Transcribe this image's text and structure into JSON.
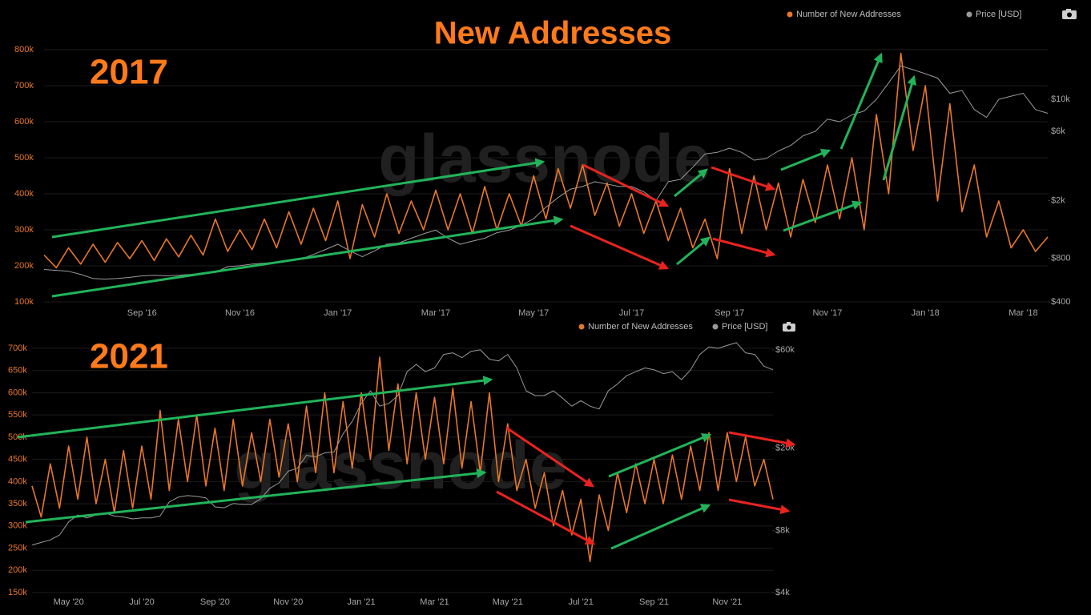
{
  "title": "New Addresses",
  "chart_data": [
    {
      "type": "line",
      "annotations": [
        "2017",
        "glassnode"
      ],
      "categories": [
        null,
        null,
        null,
        null,
        null,
        null,
        null,
        null,
        "Sep '16",
        null,
        null,
        null,
        null,
        null,
        null,
        null,
        "Nov '16",
        null,
        null,
        null,
        null,
        null,
        null,
        null,
        "Jan '17",
        null,
        null,
        null,
        null,
        null,
        null,
        null,
        "Mar '17",
        null,
        null,
        null,
        null,
        null,
        null,
        null,
        "May '17",
        null,
        null,
        null,
        null,
        null,
        null,
        null,
        "Jul '17",
        null,
        null,
        null,
        null,
        null,
        null,
        null,
        "Sep '17",
        null,
        null,
        null,
        null,
        null,
        null,
        null,
        "Nov '17",
        null,
        null,
        null,
        null,
        null,
        null,
        null,
        "Jan '18",
        null,
        null,
        null,
        null,
        null,
        null,
        null,
        "Mar '18",
        null,
        null
      ],
      "series": [
        {
          "name": "Number of New Addresses",
          "color": "#e8772a",
          "axis": "y",
          "values": [
            230000,
            195000,
            250000,
            205000,
            260000,
            210000,
            265000,
            220000,
            270000,
            215000,
            275000,
            225000,
            285000,
            230000,
            330000,
            240000,
            300000,
            245000,
            330000,
            250000,
            350000,
            260000,
            360000,
            270000,
            380000,
            220000,
            370000,
            280000,
            400000,
            290000,
            380000,
            300000,
            410000,
            300000,
            400000,
            290000,
            420000,
            300000,
            400000,
            310000,
            450000,
            330000,
            470000,
            360000,
            480000,
            340000,
            430000,
            310000,
            400000,
            290000,
            380000,
            270000,
            360000,
            250000,
            330000,
            220000,
            470000,
            290000,
            450000,
            300000,
            430000,
            280000,
            440000,
            320000,
            480000,
            330000,
            500000,
            300000,
            620000,
            400000,
            790000,
            520000,
            700000,
            380000,
            650000,
            350000,
            480000,
            280000,
            380000,
            250000,
            300000,
            240000,
            280000
          ]
        },
        {
          "name": "Price [USD]",
          "color": "#9a9a9a",
          "axis": "y2",
          "values": [
            670,
            660,
            650,
            620,
            580,
            575,
            580,
            590,
            605,
            610,
            605,
            610,
            620,
            630,
            640,
            700,
            710,
            730,
            740,
            750,
            770,
            790,
            850,
            920,
            1000,
            900,
            820,
            900,
            1000,
            1020,
            1100,
            1180,
            1250,
            1100,
            1000,
            1050,
            1100,
            1200,
            1250,
            1350,
            1500,
            1800,
            2100,
            2400,
            2500,
            2700,
            2600,
            2500,
            2500,
            2300,
            2000,
            2700,
            2800,
            3400,
            4200,
            4300,
            4600,
            4300,
            3800,
            3900,
            4400,
            4800,
            5600,
            6000,
            7300,
            7000,
            7800,
            8300,
            10000,
            13000,
            17000,
            16000,
            15000,
            14000,
            11000,
            11500,
            8500,
            7500,
            10000,
            10500,
            11000,
            8500,
            8000
          ]
        }
      ],
      "ylim": [
        100000,
        800000
      ],
      "yticks": [
        {
          "value": 100000,
          "label": "100k"
        },
        {
          "value": 200000,
          "label": "200k"
        },
        {
          "value": 300000,
          "label": "300k"
        },
        {
          "value": 400000,
          "label": "400k"
        },
        {
          "value": 500000,
          "label": "500k"
        },
        {
          "value": 600000,
          "label": "600k"
        },
        {
          "value": 700000,
          "label": "700k"
        },
        {
          "value": 800000,
          "label": "800k"
        }
      ],
      "y2lim": [
        400,
        22000
      ],
      "y2log": true,
      "y2ticks": [
        {
          "value": 400,
          "label": "$400"
        },
        {
          "value": 800,
          "label": "$800"
        },
        {
          "value": 2000,
          "label": "$2k"
        },
        {
          "value": 6000,
          "label": "$6k"
        },
        {
          "value": 10000,
          "label": "$10k"
        }
      ],
      "grid": true
    },
    {
      "type": "line",
      "annotations": [
        "2021",
        "glassnode"
      ],
      "categories": [
        null,
        null,
        null,
        null,
        "May '20",
        null,
        null,
        null,
        null,
        null,
        null,
        null,
        "Jul '20",
        null,
        null,
        null,
        null,
        null,
        null,
        null,
        "Sep '20",
        null,
        null,
        null,
        null,
        null,
        null,
        null,
        "Nov '20",
        null,
        null,
        null,
        null,
        null,
        null,
        null,
        "Jan '21",
        null,
        null,
        null,
        null,
        null,
        null,
        null,
        "Mar '21",
        null,
        null,
        null,
        null,
        null,
        null,
        null,
        "May '21",
        null,
        null,
        null,
        null,
        null,
        null,
        null,
        "Jul '21",
        null,
        null,
        null,
        null,
        null,
        null,
        null,
        "Sep '21",
        null,
        null,
        null,
        null,
        null,
        null,
        null,
        "Nov '21",
        null,
        null,
        null,
        null,
        null
      ],
      "series": [
        {
          "name": "Number of New Addresses",
          "color": "#e8772a",
          "axis": "y",
          "values": [
            390000,
            320000,
            440000,
            340000,
            480000,
            360000,
            500000,
            350000,
            450000,
            330000,
            470000,
            340000,
            480000,
            360000,
            560000,
            380000,
            540000,
            400000,
            550000,
            390000,
            520000,
            380000,
            540000,
            390000,
            510000,
            400000,
            540000,
            410000,
            530000,
            400000,
            570000,
            420000,
            600000,
            420000,
            580000,
            430000,
            600000,
            450000,
            680000,
            470000,
            620000,
            440000,
            600000,
            450000,
            590000,
            440000,
            610000,
            430000,
            580000,
            420000,
            600000,
            400000,
            530000,
            380000,
            450000,
            340000,
            420000,
            300000,
            380000,
            280000,
            360000,
            220000,
            370000,
            290000,
            420000,
            330000,
            440000,
            350000,
            450000,
            350000,
            460000,
            360000,
            480000,
            380000,
            510000,
            380000,
            510000,
            400000,
            500000,
            390000,
            450000,
            360000
          ]
        },
        {
          "name": "Price [USD]",
          "color": "#9a9a9a",
          "axis": "y2",
          "values": [
            6800,
            7000,
            7200,
            7600,
            8800,
            9500,
            9200,
            9500,
            9700,
            9400,
            9300,
            9100,
            9200,
            9200,
            9400,
            11000,
            11600,
            11800,
            11700,
            11500,
            10400,
            10300,
            10800,
            10700,
            10700,
            11400,
            12800,
            13600,
            15500,
            16000,
            18500,
            18200,
            19000,
            19200,
            23500,
            27000,
            33000,
            38000,
            32000,
            33000,
            36000,
            47000,
            51000,
            47000,
            49000,
            57000,
            58000,
            55000,
            59000,
            60000,
            54000,
            53000,
            57000,
            49000,
            38000,
            36000,
            36000,
            38000,
            35000,
            32000,
            34000,
            32000,
            31000,
            38000,
            41000,
            45000,
            47000,
            49000,
            48000,
            46000,
            47000,
            43000,
            48000,
            57000,
            62000,
            61000,
            63000,
            65000,
            58000,
            57000,
            50000,
            48000
          ]
        }
      ],
      "ylim": [
        150000,
        700000
      ],
      "yticks": [
        {
          "value": 150000,
          "label": "150k"
        },
        {
          "value": 200000,
          "label": "200k"
        },
        {
          "value": 250000,
          "label": "250k"
        },
        {
          "value": 300000,
          "label": "300k"
        },
        {
          "value": 350000,
          "label": "350k"
        },
        {
          "value": 400000,
          "label": "400k"
        },
        {
          "value": 450000,
          "label": "450k"
        },
        {
          "value": 500000,
          "label": "500k"
        },
        {
          "value": 550000,
          "label": "550k"
        },
        {
          "value": 600000,
          "label": "600k"
        },
        {
          "value": 650000,
          "label": "650k"
        },
        {
          "value": 700000,
          "label": "700k"
        }
      ],
      "y2lim": [
        4000,
        61000
      ],
      "y2log": true,
      "y2ticks": [
        {
          "value": 4000,
          "label": "$4k"
        },
        {
          "value": 8000,
          "label": "$8k"
        },
        {
          "value": 20000,
          "label": "$20k"
        },
        {
          "value": 60000,
          "label": "$60k"
        }
      ],
      "grid": true
    }
  ]
}
